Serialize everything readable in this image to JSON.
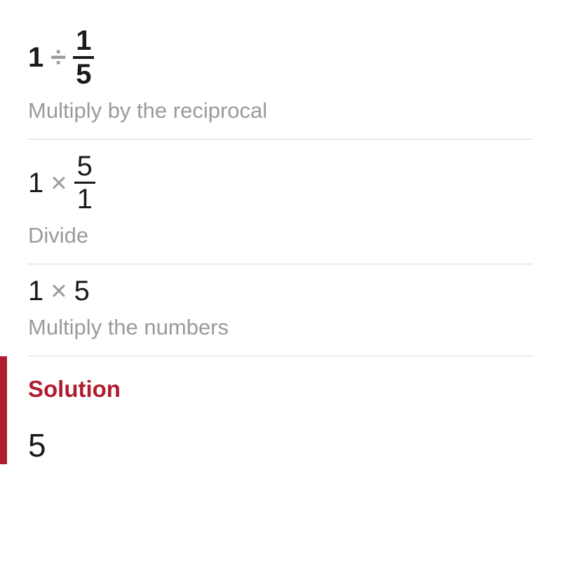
{
  "colors": {
    "text_primary": "#1a1a1a",
    "text_muted": "#9a9a9a",
    "divider": "#d8d8d8",
    "accent": "#b01c2e",
    "background": "#ffffff"
  },
  "typography": {
    "expr_fontsize": 40,
    "desc_fontsize": 31,
    "solution_label_fontsize": 33,
    "solution_value_fontsize": 46
  },
  "steps": [
    {
      "lhs": "1",
      "operator": "÷",
      "fraction": {
        "numer": "1",
        "denom": "5"
      },
      "bold": true,
      "description": "Multiply by the reciprocal"
    },
    {
      "lhs": "1",
      "operator": "×",
      "fraction": {
        "numer": "5",
        "denom": "1"
      },
      "bold": false,
      "description": "Divide"
    },
    {
      "lhs": "1",
      "operator": "×",
      "rhs": "5",
      "bold": false,
      "description": "Multiply the numbers"
    }
  ],
  "solution": {
    "label": "Solution",
    "value": "5"
  }
}
